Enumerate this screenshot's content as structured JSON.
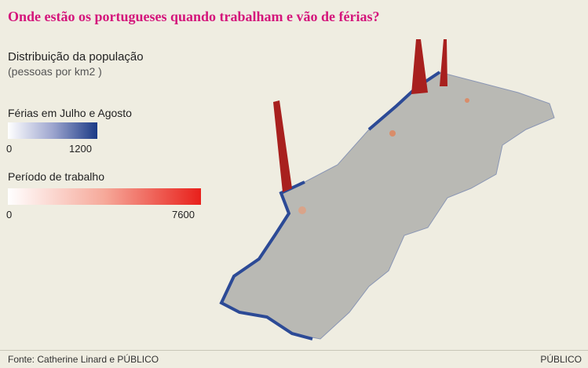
{
  "header": {
    "title": "Onde estão os portugueses quando trabalham e vão de férias?"
  },
  "legend": {
    "title": "Distribuição da população",
    "subtitle": "(pessoas por km2 )",
    "scales": [
      {
        "label": "Férias em Julho e Agosto",
        "min": 0,
        "max": 1200
      },
      {
        "label": "Período de trabalho",
        "min": 0,
        "max": 7600
      }
    ]
  },
  "footer": {
    "source": "Fonte: Catherine Linard e PÚBLICO",
    "brand": "PÚBLICO"
  }
}
